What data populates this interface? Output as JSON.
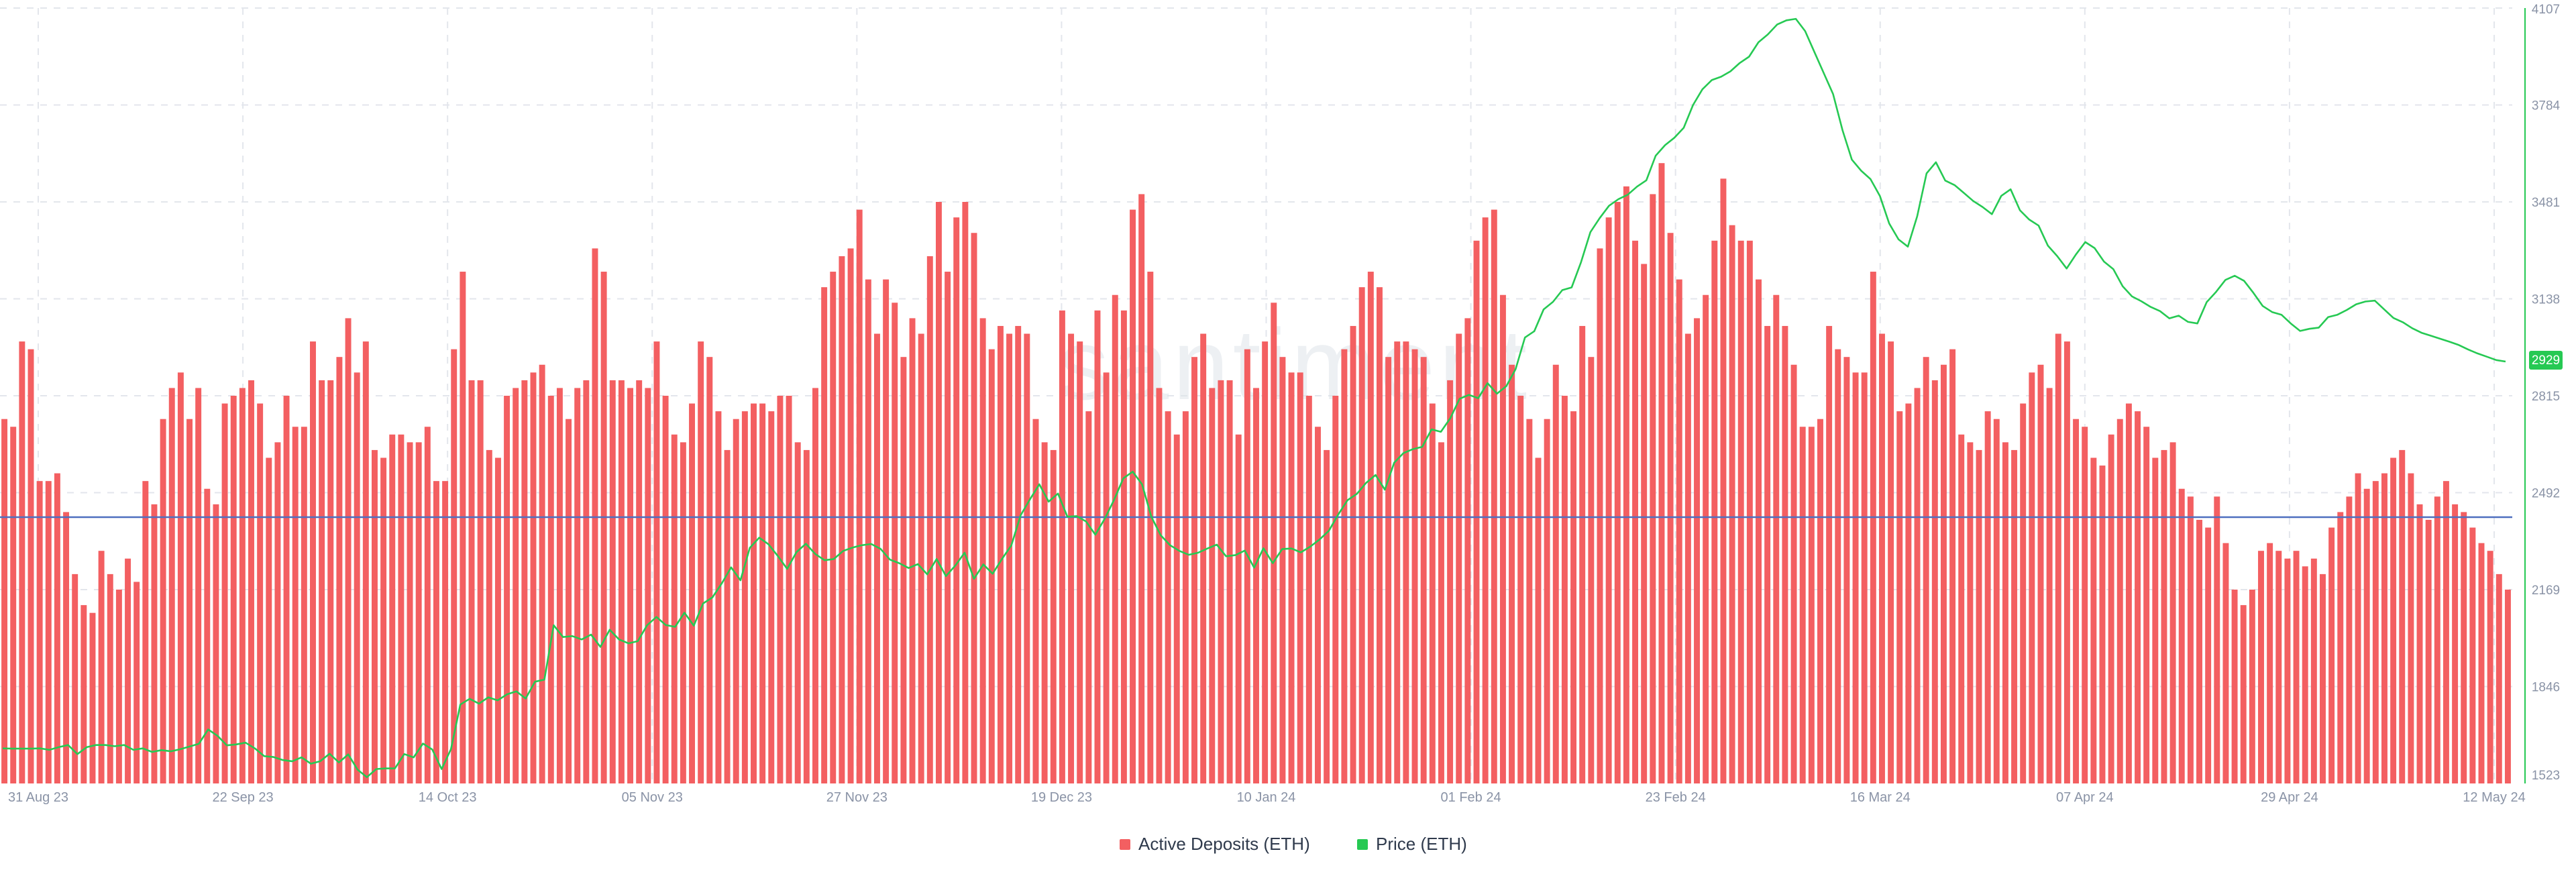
{
  "chart_data": {
    "type": "bar",
    "watermark": "santiment",
    "x_ticks": [
      "31 Aug 23",
      "22 Sep 23",
      "14 Oct 23",
      "05 Nov 23",
      "27 Nov 23",
      "19 Dec 23",
      "10 Jan 24",
      "01 Feb 24",
      "23 Feb 24",
      "16 Mar 24",
      "07 Apr 24",
      "29 Apr 24",
      "12 May 24"
    ],
    "y_right": {
      "ticks": [
        "1523",
        "1846",
        "2169",
        "2492",
        "2815",
        "3138",
        "3481",
        "3784",
        "4107"
      ],
      "range": [
        1523,
        4107
      ],
      "current_value": "2929"
    },
    "grid": true,
    "legend": {
      "placement": "bottom-center",
      "items": [
        {
          "name": "Active Deposits (ETH)",
          "color": "#f35f61"
        },
        {
          "name": "Price (ETH)",
          "color": "#26c953"
        }
      ]
    },
    "series": [
      {
        "name": "Active Deposits (ETH)",
        "kind": "bar",
        "color": "#f35f61",
        "scale": "relative, left axis unlabeled (0-1 of plot height)",
        "values": [
          0.47,
          0.46,
          0.57,
          0.56,
          0.39,
          0.39,
          0.4,
          0.35,
          0.27,
          0.23,
          0.22,
          0.3,
          0.27,
          0.25,
          0.29,
          0.26,
          0.39,
          0.36,
          0.47,
          0.51,
          0.53,
          0.47,
          0.51,
          0.38,
          0.36,
          0.49,
          0.5,
          0.51,
          0.52,
          0.49,
          0.42,
          0.44,
          0.5,
          0.46,
          0.46,
          0.57,
          0.52,
          0.52,
          0.55,
          0.6,
          0.53,
          0.57,
          0.43,
          0.42,
          0.45,
          0.45,
          0.44,
          0.44,
          0.46,
          0.39,
          0.39,
          0.56,
          0.66,
          0.52,
          0.52,
          0.43,
          0.42,
          0.5,
          0.51,
          0.52,
          0.53,
          0.54,
          0.5,
          0.51,
          0.47,
          0.51,
          0.52,
          0.69,
          0.66,
          0.52,
          0.52,
          0.51,
          0.52,
          0.51,
          0.57,
          0.5,
          0.45,
          0.44,
          0.49,
          0.57,
          0.55,
          0.48,
          0.43,
          0.47,
          0.48,
          0.49,
          0.49,
          0.48,
          0.5,
          0.5,
          0.44,
          0.43,
          0.51,
          0.64,
          0.66,
          0.68,
          0.69,
          0.74,
          0.65,
          0.58,
          0.65,
          0.62,
          0.55,
          0.6,
          0.58,
          0.68,
          0.75,
          0.66,
          0.73,
          0.75,
          0.71,
          0.6,
          0.56,
          0.59,
          0.58,
          0.59,
          0.58,
          0.47,
          0.44,
          0.43,
          0.61,
          0.58,
          0.57,
          0.48,
          0.61,
          0.53,
          0.63,
          0.61,
          0.74,
          0.76,
          0.66,
          0.51,
          0.48,
          0.45,
          0.48,
          0.55,
          0.58,
          0.51,
          0.52,
          0.52,
          0.45,
          0.56,
          0.51,
          0.57,
          0.62,
          0.55,
          0.53,
          0.53,
          0.5,
          0.46,
          0.43,
          0.5,
          0.56,
          0.59,
          0.64,
          0.66,
          0.64,
          0.55,
          0.57,
          0.57,
          0.56,
          0.55,
          0.49,
          0.44,
          0.52,
          0.58,
          0.6,
          0.7,
          0.73,
          0.74,
          0.63,
          0.54,
          0.5,
          0.47,
          0.42,
          0.47,
          0.54,
          0.5,
          0.48,
          0.59,
          0.55,
          0.69,
          0.73,
          0.75,
          0.77,
          0.7,
          0.67,
          0.76,
          0.8,
          0.71,
          0.65,
          0.58,
          0.6,
          0.63,
          0.7,
          0.78,
          0.72,
          0.7,
          0.7,
          0.65,
          0.59,
          0.63,
          0.59,
          0.54,
          0.46,
          0.46,
          0.47,
          0.59,
          0.56,
          0.55,
          0.53,
          0.53,
          0.66,
          0.58,
          0.57,
          0.48,
          0.49,
          0.51,
          0.55,
          0.52,
          0.54,
          0.56,
          0.45,
          0.44,
          0.43,
          0.48,
          0.47,
          0.44,
          0.43,
          0.49,
          0.53,
          0.54,
          0.51,
          0.58,
          0.57,
          0.47,
          0.46,
          0.42,
          0.41,
          0.45,
          0.47,
          0.49,
          0.48,
          0.46,
          0.42,
          0.43,
          0.44,
          0.38,
          0.37,
          0.34,
          0.33,
          0.37,
          0.31,
          0.25,
          0.23,
          0.25,
          0.3,
          0.31,
          0.3,
          0.29,
          0.3,
          0.28,
          0.29,
          0.27,
          0.33,
          0.35,
          0.37,
          0.4,
          0.38,
          0.39,
          0.4,
          0.42,
          0.43,
          0.4,
          0.36,
          0.34,
          0.37,
          0.39,
          0.36,
          0.35,
          0.33,
          0.31,
          0.3,
          0.27,
          0.25
        ]
      },
      {
        "name": "Price (ETH)",
        "kind": "line",
        "color": "#26c953",
        "values": [
          1640,
          1639,
          1639,
          1639,
          1640,
          1635,
          1644,
          1651,
          1621,
          1644,
          1651,
          1651,
          1647,
          1651,
          1635,
          1640,
          1628,
          1634,
          1630,
          1637,
          1646,
          1655,
          1703,
          1682,
          1650,
          1653,
          1659,
          1640,
          1614,
          1611,
          1601,
          1597,
          1610,
          1589,
          1597,
          1622,
          1593,
          1620,
          1569,
          1544,
          1571,
          1573,
          1573,
          1621,
          1610,
          1656,
          1636,
          1571,
          1637,
          1786,
          1805,
          1789,
          1810,
          1800,
          1820,
          1830,
          1806,
          1862,
          1869,
          2050,
          2011,
          2014,
          2003,
          2019,
          1978,
          2035,
          2003,
          1990,
          1997,
          2050,
          2078,
          2051,
          2045,
          2092,
          2049,
          2123,
          2143,
          2190,
          2243,
          2200,
          2308,
          2342,
          2320,
          2281,
          2238,
          2294,
          2322,
          2288,
          2267,
          2271,
          2298,
          2309,
          2317,
          2321,
          2305,
          2269,
          2257,
          2241,
          2254,
          2220,
          2271,
          2214,
          2249,
          2292,
          2205,
          2253,
          2222,
          2271,
          2316,
          2417,
          2470,
          2520,
          2462,
          2489,
          2412,
          2414,
          2396,
          2352,
          2405,
          2468,
          2540,
          2562,
          2520,
          2411,
          2350,
          2317,
          2298,
          2285,
          2292,
          2306,
          2319,
          2280,
          2284,
          2299,
          2242,
          2307,
          2257,
          2304,
          2306,
          2293,
          2312,
          2336,
          2365,
          2419,
          2467,
          2488,
          2525,
          2551,
          2502,
          2592,
          2624,
          2637,
          2645,
          2703,
          2695,
          2740,
          2805,
          2818,
          2807,
          2857,
          2822,
          2847,
          2904,
          3009,
          3030,
          3103,
          3128,
          3167,
          3176,
          3260,
          3360,
          3407,
          3448,
          3470,
          3485,
          3512,
          3533,
          3615,
          3650,
          3675,
          3708,
          3784,
          3836,
          3867,
          3878,
          3896,
          3924,
          3945,
          3993,
          4019,
          4052,
          4066,
          4071,
          4030,
          3960,
          3890,
          3820,
          3700,
          3602,
          3565,
          3537,
          3481,
          3389,
          3336,
          3312,
          3413,
          3556,
          3593,
          3532,
          3517,
          3491,
          3464,
          3444,
          3420,
          3481,
          3503,
          3433,
          3402,
          3382,
          3315,
          3280,
          3239,
          3286,
          3327,
          3307,
          3262,
          3237,
          3180,
          3146,
          3130,
          3111,
          3097,
          3073,
          3082,
          3061,
          3056,
          3127,
          3161,
          3201,
          3215,
          3198,
          3158,
          3114,
          3094,
          3085,
          3056,
          3031,
          3038,
          3042,
          3077,
          3085,
          3101,
          3120,
          3129,
          3132,
          3103,
          3074,
          3060,
          3040,
          3025,
          3015,
          3005,
          2995,
          2984,
          2969,
          2956,
          2945,
          2934,
          2929
        ]
      }
    ]
  }
}
